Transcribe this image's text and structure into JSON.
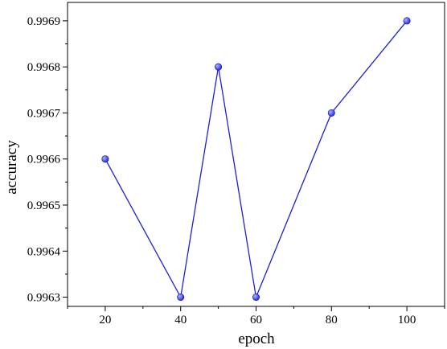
{
  "chart_data": {
    "type": "line",
    "xlabel": "epoch",
    "ylabel": "accuracy",
    "x": [
      20,
      40,
      50,
      60,
      80,
      100
    ],
    "y": [
      0.9966,
      0.9963,
      0.9968,
      0.9963,
      0.9967,
      0.9969
    ],
    "xlim": [
      10,
      110
    ],
    "ylim": [
      0.99628,
      0.99694
    ],
    "x_ticks": [
      20,
      40,
      60,
      80,
      100
    ],
    "x_tick_labels": [
      "20",
      "40",
      "60",
      "80",
      "100"
    ],
    "x_minor_ticks": [
      10,
      30,
      50,
      70,
      90,
      110
    ],
    "y_ticks": [
      0.9963,
      0.9964,
      0.9965,
      0.9966,
      0.9967,
      0.9968,
      0.9969
    ],
    "y_tick_labels": [
      "0.9963",
      "0.9964",
      "0.9965",
      "0.9966",
      "0.9967",
      "0.9968",
      "0.9969"
    ],
    "grid": false,
    "legend": "none",
    "colors": {
      "line": "#1f1fd6",
      "marker": "#2a2ae8",
      "marker_highlight": "#a8b8ff",
      "axis": "#000000"
    }
  }
}
